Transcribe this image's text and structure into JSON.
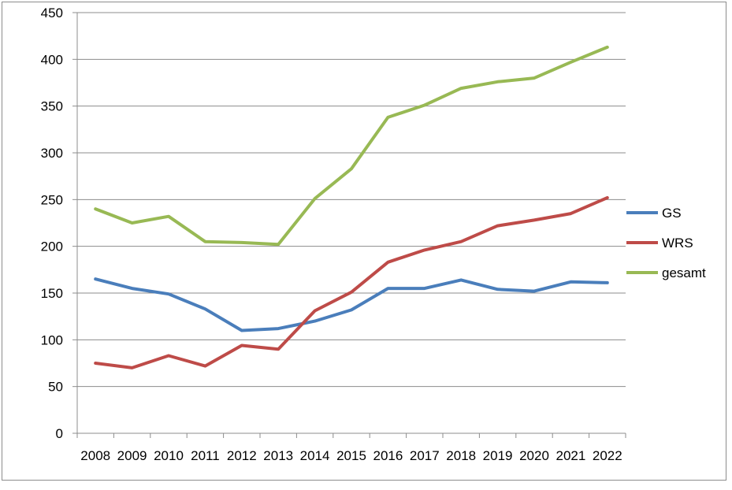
{
  "chart_data": {
    "type": "line",
    "title": "",
    "xlabel": "",
    "ylabel": "",
    "categories": [
      "2008",
      "2009",
      "2010",
      "2011",
      "2012",
      "2013",
      "2014",
      "2015",
      "2016",
      "2017",
      "2018",
      "2019",
      "2020",
      "2021",
      "2022"
    ],
    "ylim": [
      0,
      450
    ],
    "yticks": [
      0,
      50,
      100,
      150,
      200,
      250,
      300,
      350,
      400,
      450
    ],
    "grid": true,
    "legend_position": "right",
    "series": [
      {
        "name": "GS",
        "color": "#4a7ebb",
        "values": [
          165,
          155,
          149,
          133,
          110,
          112,
          120,
          132,
          155,
          155,
          164,
          154,
          152,
          162,
          161
        ]
      },
      {
        "name": "WRS",
        "color": "#be4b48",
        "values": [
          75,
          70,
          83,
          72,
          94,
          90,
          131,
          151,
          183,
          196,
          205,
          222,
          228,
          235,
          252
        ]
      },
      {
        "name": "gesamt",
        "color": "#98b954",
        "values": [
          240,
          225,
          232,
          205,
          204,
          202,
          251,
          283,
          338,
          351,
          369,
          376,
          380,
          397,
          413
        ]
      }
    ]
  }
}
